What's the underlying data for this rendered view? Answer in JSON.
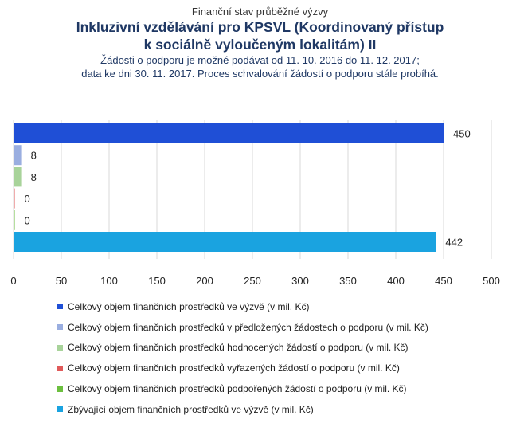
{
  "header": {
    "supertitle": "Finanční stav průběžné výzvy",
    "title_line1": "Inkluzivní vzdělávání pro KPSVL (Koordinovaný přístup",
    "title_line2": "k sociálně vyloučeným lokalitám) II",
    "subtitle_line1": "Žádosti o podporu je možné podávat od 11. 10. 2016 do 11. 12. 2017;",
    "subtitle_line2": "data ke dni 30. 11. 2017. Proces schvalování žádostí o podporu stále probíhá."
  },
  "chart_data": {
    "type": "bar",
    "orientation": "horizontal",
    "series": [
      {
        "name": "Celkový objem finančních prostředků ve výzvě (v mil. Kč)",
        "value": 450,
        "label": "450",
        "color": "#1f4fd6"
      },
      {
        "name": "Celkový objem finančních prostředků v předložených žádostech o podporu (v mil. Kč)",
        "value": 8,
        "label": "8",
        "color": "#9aaee0"
      },
      {
        "name": "Celkový objem finančních prostředků hodnocených žádostí o podporu (v mil. Kč)",
        "value": 8,
        "label": "8",
        "color": "#a8d39a"
      },
      {
        "name": "Celkový objem finančních prostředků vyřazených žádostí o podporu (v mil. Kč)",
        "value": 0,
        "label": "0",
        "color": "#e05a5a"
      },
      {
        "name": "Celkový objem finančních prostředků podpořených žádostí o podporu (v mil. Kč)",
        "value": 0,
        "label": "0",
        "color": "#6cbf3f"
      },
      {
        "name": "Zbývající objem finančních prostředků ve výzvě (v mil. Kč)",
        "value": 442,
        "label": "442",
        "color": "#1aa3e0"
      }
    ],
    "xlim": [
      0,
      500
    ],
    "x_ticks": [
      "0",
      "50",
      "100",
      "150",
      "200",
      "250",
      "300",
      "350",
      "400",
      "450",
      "500"
    ],
    "grid": true,
    "legend_position": "bottom"
  }
}
